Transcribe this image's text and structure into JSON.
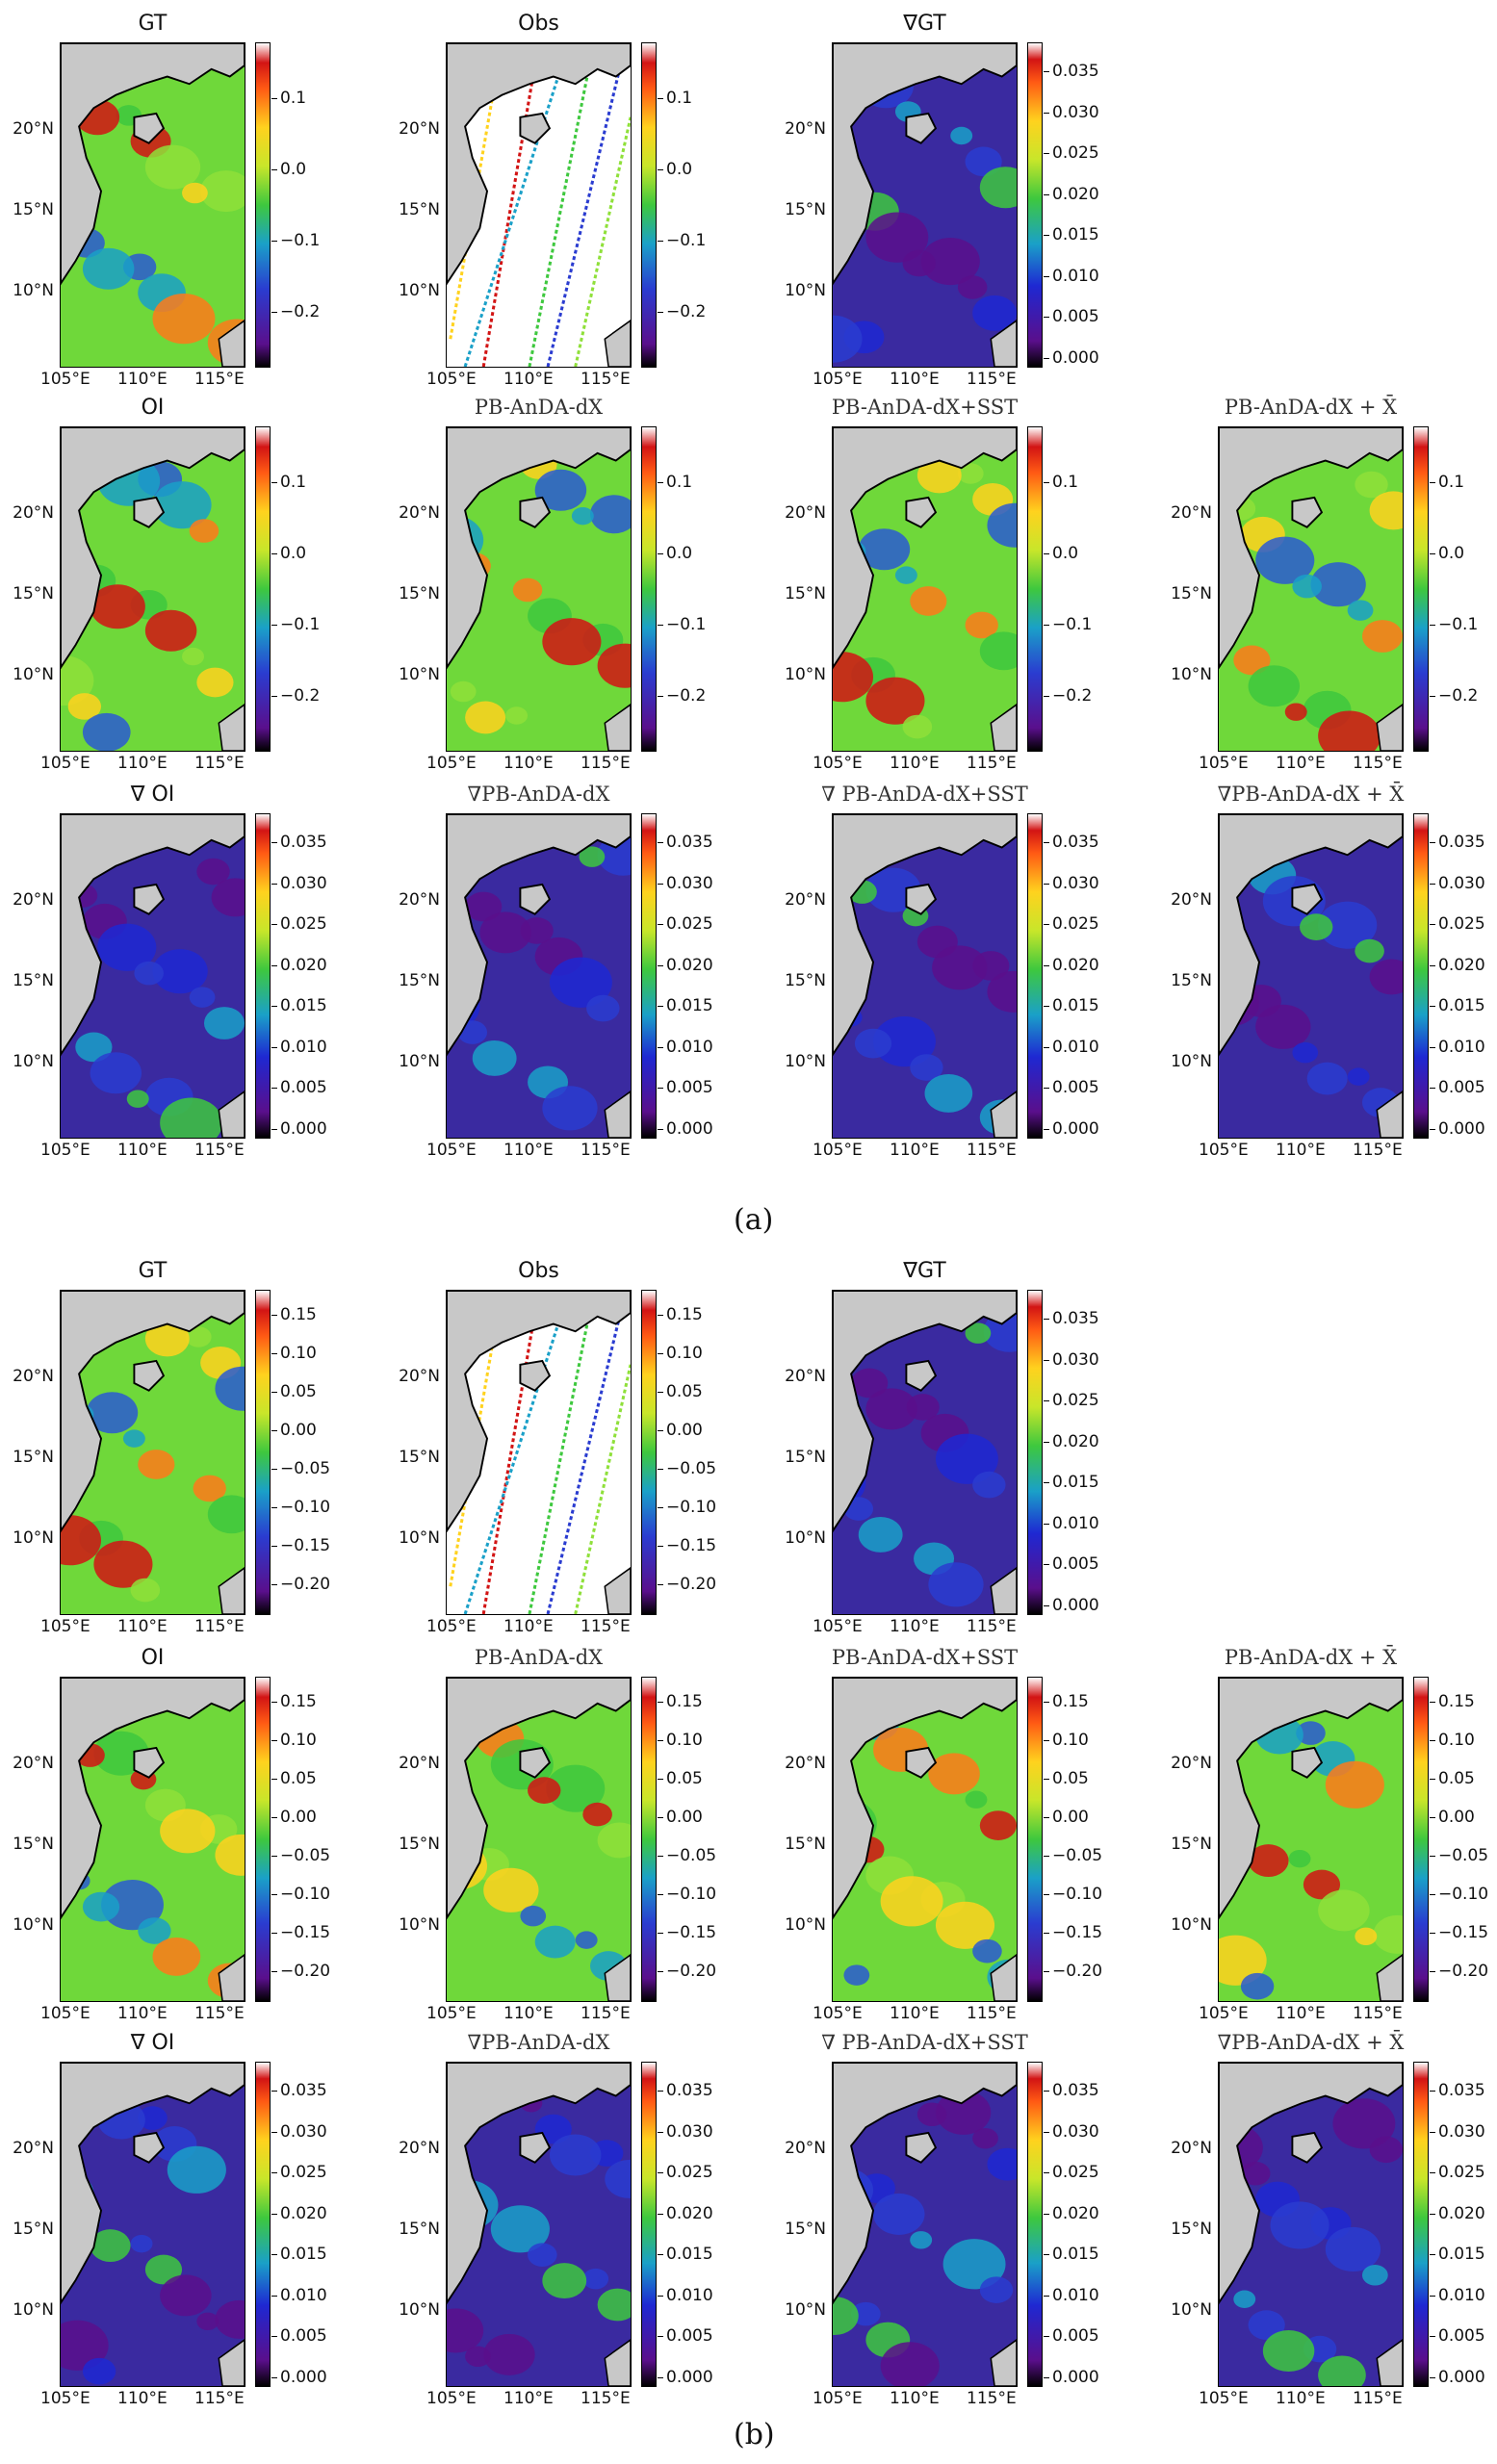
{
  "figure": {
    "captions": [
      "(a)",
      "(b)"
    ],
    "axes": {
      "lat_labels": [
        "20°N",
        "15°N",
        "10°N"
      ],
      "lon_labels": [
        "105°E",
        "110°E",
        "115°E"
      ]
    },
    "colorbars": {
      "ssh_a": [
        "0.1",
        "0.0",
        "−0.1",
        "−0.2"
      ],
      "ssh_b": [
        "0.15",
        "0.10",
        "0.05",
        "0.00",
        "−0.05",
        "−0.10",
        "−0.15",
        "−0.20"
      ],
      "grad": [
        "0.035",
        "0.030",
        "0.025",
        "0.020",
        "0.015",
        "0.010",
        "0.005",
        "0.000"
      ]
    },
    "subfigures": [
      {
        "label": "(a)",
        "rows": [
          [
            "GT",
            "Obs",
            "∇GT"
          ],
          [
            "OI",
            "PB-AnDA-dX",
            "PB-AnDA-dX+SST",
            "PB-AnDA-dX + X̄"
          ],
          [
            "∇ OI",
            "∇PB-AnDA-dX",
            "∇ PB-AnDA-dX+SST",
            "∇PB-AnDA-dX + X̄"
          ]
        ]
      },
      {
        "label": "(b)",
        "rows": [
          [
            "GT",
            "Obs",
            "∇GT"
          ],
          [
            "OI",
            "PB-AnDA-dX",
            "PB-AnDA-dX+SST",
            "PB-AnDA-dX + X̄"
          ],
          [
            "∇ OI",
            "∇PB-AnDA-dX",
            "∇ PB-AnDA-dX+SST",
            "∇PB-AnDA-dX + X̄"
          ]
        ]
      }
    ]
  }
}
